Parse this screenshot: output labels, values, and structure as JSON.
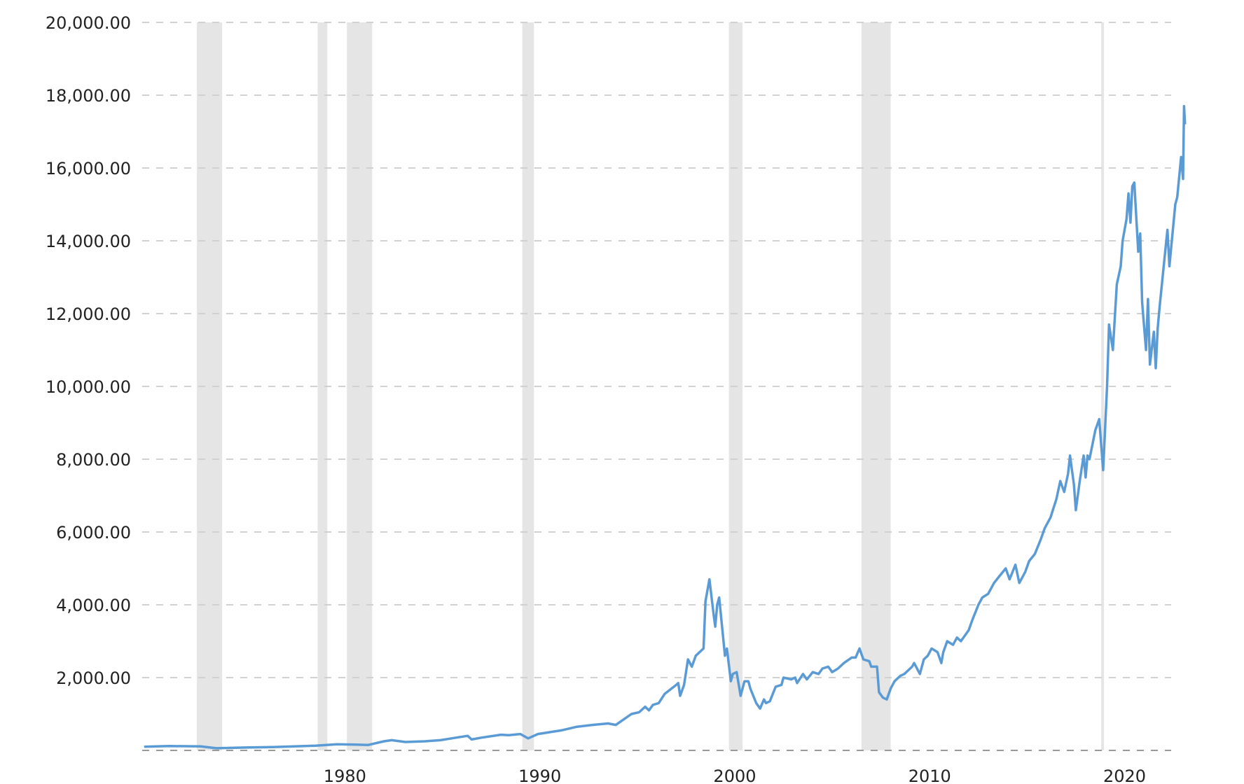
{
  "chart_data": {
    "type": "line",
    "title": "",
    "xlabel": "",
    "ylabel": "",
    "xlim": [
      1969.6,
      2023.0
    ],
    "ylim": [
      0,
      20000
    ],
    "grid": "horizontal dashed",
    "legend": "none",
    "colors": {
      "line": "#5b9bd5",
      "recession": "#e5e5e5",
      "grid": "#d0d0d0",
      "baseline": "#999999"
    },
    "y_ticks": [
      {
        "value": 2000,
        "label": "2,000.00"
      },
      {
        "value": 4000,
        "label": "4,000.00"
      },
      {
        "value": 6000,
        "label": "6,000.00"
      },
      {
        "value": 8000,
        "label": "8,000.00"
      },
      {
        "value": 10000,
        "label": "10,000.00"
      },
      {
        "value": 12000,
        "label": "12,000.00"
      },
      {
        "value": 14000,
        "label": "14,000.00"
      },
      {
        "value": 16000,
        "label": "16,000.00"
      },
      {
        "value": 18000,
        "label": "18,000.00"
      },
      {
        "value": 20000,
        "label": "20,000.00"
      }
    ],
    "x_ticks": [
      {
        "value": 1980,
        "label": "1980"
      },
      {
        "value": 1990,
        "label": "1990"
      },
      {
        "value": 2000,
        "label": "2000"
      },
      {
        "value": 2010,
        "label": "2010"
      },
      {
        "value": 2020,
        "label": "2020"
      }
    ],
    "shaded_periods": [
      [
        1972.4,
        1973.7
      ],
      [
        1978.6,
        1979.1
      ],
      [
        1980.1,
        1981.4
      ],
      [
        1989.1,
        1989.7
      ],
      [
        1999.7,
        2000.4
      ],
      [
        2006.5,
        2008.0
      ],
      [
        2018.8,
        2018.9
      ]
    ],
    "series": [
      {
        "points": [
          [
            1969.7,
            100
          ],
          [
            1971.0,
            120
          ],
          [
            1972.6,
            110
          ],
          [
            1973.4,
            60
          ],
          [
            1975.1,
            80
          ],
          [
            1976.3,
            90
          ],
          [
            1978.5,
            130
          ],
          [
            1979.6,
            170
          ],
          [
            1980.6,
            160
          ],
          [
            1981.2,
            150
          ],
          [
            1982.0,
            250
          ],
          [
            1982.4,
            280
          ],
          [
            1983.1,
            230
          ],
          [
            1984.1,
            250
          ],
          [
            1984.9,
            280
          ],
          [
            1985.7,
            350
          ],
          [
            1986.3,
            400
          ],
          [
            1986.5,
            300
          ],
          [
            1987.0,
            350
          ],
          [
            1988.0,
            430
          ],
          [
            1988.4,
            420
          ],
          [
            1989.0,
            450
          ],
          [
            1989.4,
            330
          ],
          [
            1989.9,
            450
          ],
          [
            1991.1,
            550
          ],
          [
            1991.9,
            650
          ],
          [
            1992.7,
            700
          ],
          [
            1993.5,
            740
          ],
          [
            1993.9,
            700
          ],
          [
            1994.3,
            850
          ],
          [
            1994.7,
            1000
          ],
          [
            1995.1,
            1050
          ],
          [
            1995.4,
            1200
          ],
          [
            1995.6,
            1100
          ],
          [
            1995.8,
            1250
          ],
          [
            1996.1,
            1300
          ],
          [
            1996.4,
            1550
          ],
          [
            1997.0,
            1800
          ],
          [
            1997.1,
            1850
          ],
          [
            1997.2,
            1500
          ],
          [
            1997.4,
            1800
          ],
          [
            1997.6,
            2500
          ],
          [
            1997.8,
            2300
          ],
          [
            1998.0,
            2600
          ],
          [
            1998.4,
            2800
          ],
          [
            1998.5,
            4100
          ],
          [
            1998.7,
            4700
          ],
          [
            1998.9,
            3800
          ],
          [
            1999.0,
            3400
          ],
          [
            1999.1,
            4000
          ],
          [
            1999.2,
            4200
          ],
          [
            1999.5,
            2600
          ],
          [
            1999.6,
            2800
          ],
          [
            1999.8,
            1900
          ],
          [
            1999.9,
            2100
          ],
          [
            2000.1,
            2150
          ],
          [
            2000.3,
            1500
          ],
          [
            2000.5,
            1900
          ],
          [
            2000.7,
            1900
          ],
          [
            2000.8,
            1700
          ],
          [
            2001.1,
            1300
          ],
          [
            2001.3,
            1150
          ],
          [
            2001.5,
            1400
          ],
          [
            2001.6,
            1300
          ],
          [
            2001.8,
            1350
          ],
          [
            2002.1,
            1750
          ],
          [
            2002.4,
            1800
          ],
          [
            2002.5,
            2000
          ],
          [
            2002.9,
            1950
          ],
          [
            2003.1,
            2000
          ],
          [
            2003.2,
            1850
          ],
          [
            2003.5,
            2100
          ],
          [
            2003.7,
            1950
          ],
          [
            2004.0,
            2150
          ],
          [
            2004.3,
            2100
          ],
          [
            2004.5,
            2250
          ],
          [
            2004.8,
            2300
          ],
          [
            2005.0,
            2150
          ],
          [
            2005.3,
            2250
          ],
          [
            2005.6,
            2400
          ],
          [
            2006.0,
            2550
          ],
          [
            2006.2,
            2550
          ],
          [
            2006.4,
            2800
          ],
          [
            2006.6,
            2500
          ],
          [
            2006.9,
            2450
          ],
          [
            2007.0,
            2300
          ],
          [
            2007.3,
            2300
          ],
          [
            2007.4,
            1600
          ],
          [
            2007.6,
            1450
          ],
          [
            2007.8,
            1400
          ],
          [
            2008.0,
            1700
          ],
          [
            2008.2,
            1900
          ],
          [
            2008.5,
            2050
          ],
          [
            2008.7,
            2100
          ],
          [
            2009.1,
            2300
          ],
          [
            2009.2,
            2400
          ],
          [
            2009.5,
            2100
          ],
          [
            2009.7,
            2500
          ],
          [
            2009.9,
            2600
          ],
          [
            2010.1,
            2800
          ],
          [
            2010.4,
            2700
          ],
          [
            2010.6,
            2400
          ],
          [
            2010.7,
            2700
          ],
          [
            2010.9,
            3000
          ],
          [
            2011.2,
            2900
          ],
          [
            2011.4,
            3100
          ],
          [
            2011.6,
            3000
          ],
          [
            2012.0,
            3300
          ],
          [
            2012.2,
            3600
          ],
          [
            2012.5,
            4000
          ],
          [
            2012.7,
            4200
          ],
          [
            2013.0,
            4300
          ],
          [
            2013.3,
            4600
          ],
          [
            2013.6,
            4800
          ],
          [
            2013.9,
            5000
          ],
          [
            2014.1,
            4700
          ],
          [
            2014.4,
            5100
          ],
          [
            2014.6,
            4600
          ],
          [
            2014.9,
            4900
          ],
          [
            2015.1,
            5200
          ],
          [
            2015.4,
            5400
          ],
          [
            2015.7,
            5800
          ],
          [
            2015.9,
            6100
          ],
          [
            2016.2,
            6400
          ],
          [
            2016.5,
            6900
          ],
          [
            2016.7,
            7400
          ],
          [
            2016.9,
            7100
          ],
          [
            2017.1,
            7600
          ],
          [
            2017.2,
            8100
          ],
          [
            2017.4,
            7300
          ],
          [
            2017.5,
            6600
          ],
          [
            2017.7,
            7400
          ],
          [
            2017.9,
            8100
          ],
          [
            2018.0,
            7500
          ],
          [
            2018.1,
            8100
          ],
          [
            2018.2,
            8000
          ],
          [
            2018.5,
            8800
          ],
          [
            2018.7,
            9100
          ],
          [
            2018.9,
            7700
          ],
          [
            2019.1,
            10000
          ],
          [
            2019.2,
            11700
          ],
          [
            2019.4,
            11000
          ],
          [
            2019.6,
            12800
          ],
          [
            2019.8,
            13300
          ],
          [
            2019.9,
            14000
          ],
          [
            2020.1,
            14600
          ],
          [
            2020.2,
            15300
          ],
          [
            2020.3,
            14500
          ],
          [
            2020.4,
            15500
          ],
          [
            2020.5,
            15600
          ],
          [
            2020.7,
            13700
          ],
          [
            2020.8,
            14200
          ],
          [
            2020.9,
            12300
          ],
          [
            2021.1,
            11000
          ],
          [
            2021.2,
            12400
          ],
          [
            2021.3,
            10600
          ],
          [
            2021.5,
            11500
          ],
          [
            2021.6,
            10500
          ],
          [
            2021.7,
            11600
          ],
          [
            2021.8,
            12200
          ],
          [
            2022.1,
            13800
          ],
          [
            2022.2,
            14300
          ],
          [
            2022.3,
            13300
          ],
          [
            2022.6,
            15000
          ],
          [
            2022.7,
            15200
          ],
          [
            2022.9,
            16300
          ],
          [
            2023.0,
            15700
          ],
          [
            2023.05,
            17700
          ],
          [
            2023.1,
            17200
          ]
        ]
      }
    ]
  }
}
